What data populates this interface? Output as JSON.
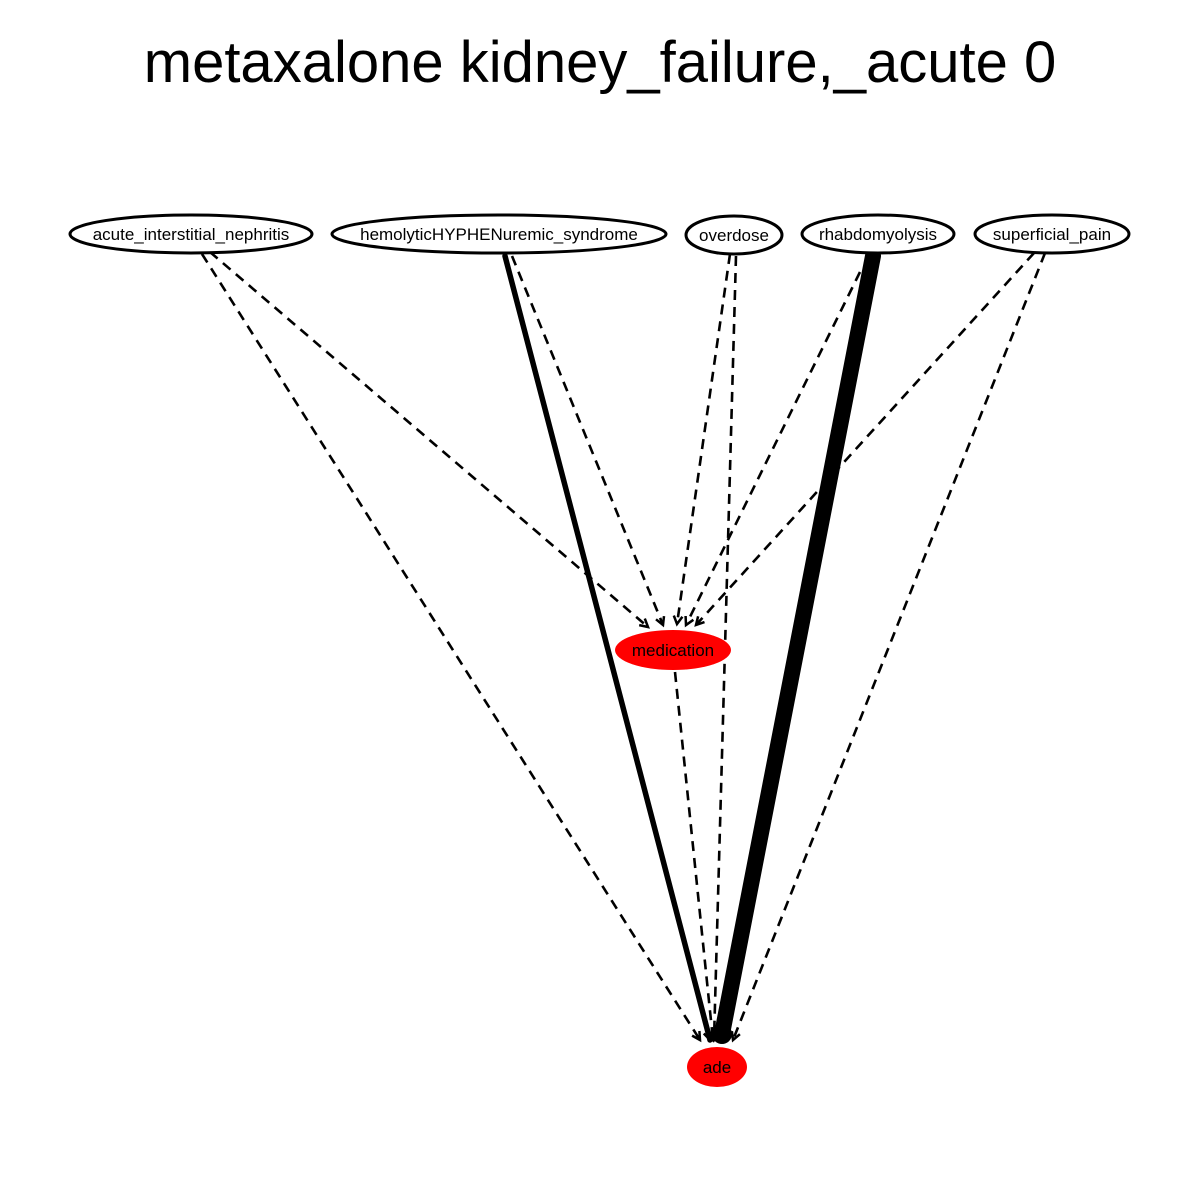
{
  "title": "metaxalone kidney_failure,_acute 0",
  "colors": {
    "highlight_fill": "#ff0000",
    "line": "#000000",
    "background": "#ffffff"
  },
  "nodes": [
    {
      "id": "acute_interstitial_nephritis",
      "label": "acute_interstitial_nephritis",
      "highlighted": false
    },
    {
      "id": "hemolyticHYPHENuremic_syndrome",
      "label": "hemolyticHYPHENuremic_syndrome",
      "highlighted": false
    },
    {
      "id": "overdose",
      "label": "overdose",
      "highlighted": false
    },
    {
      "id": "rhabdomyolysis",
      "label": "rhabdomyolysis",
      "highlighted": false
    },
    {
      "id": "superficial_pain",
      "label": "superficial_pain",
      "highlighted": false
    },
    {
      "id": "medication",
      "label": "medication",
      "highlighted": true
    },
    {
      "id": "ade",
      "label": "ade",
      "highlighted": true
    }
  ],
  "edges": [
    {
      "from": "acute_interstitial_nephritis",
      "to": "medication",
      "style": "dashed"
    },
    {
      "from": "acute_interstitial_nephritis",
      "to": "ade",
      "style": "dashed"
    },
    {
      "from": "hemolyticHYPHENuremic_syndrome",
      "to": "medication",
      "style": "dashed"
    },
    {
      "from": "hemolyticHYPHENuremic_syndrome",
      "to": "ade",
      "style": "solid",
      "weight": "medium"
    },
    {
      "from": "overdose",
      "to": "medication",
      "style": "dashed"
    },
    {
      "from": "overdose",
      "to": "ade",
      "style": "dashed"
    },
    {
      "from": "rhabdomyolysis",
      "to": "medication",
      "style": "dashed"
    },
    {
      "from": "rhabdomyolysis",
      "to": "ade",
      "style": "solid",
      "weight": "heavy"
    },
    {
      "from": "superficial_pain",
      "to": "medication",
      "style": "dashed"
    },
    {
      "from": "superficial_pain",
      "to": "ade",
      "style": "dashed"
    },
    {
      "from": "medication",
      "to": "ade",
      "style": "dashed"
    }
  ]
}
